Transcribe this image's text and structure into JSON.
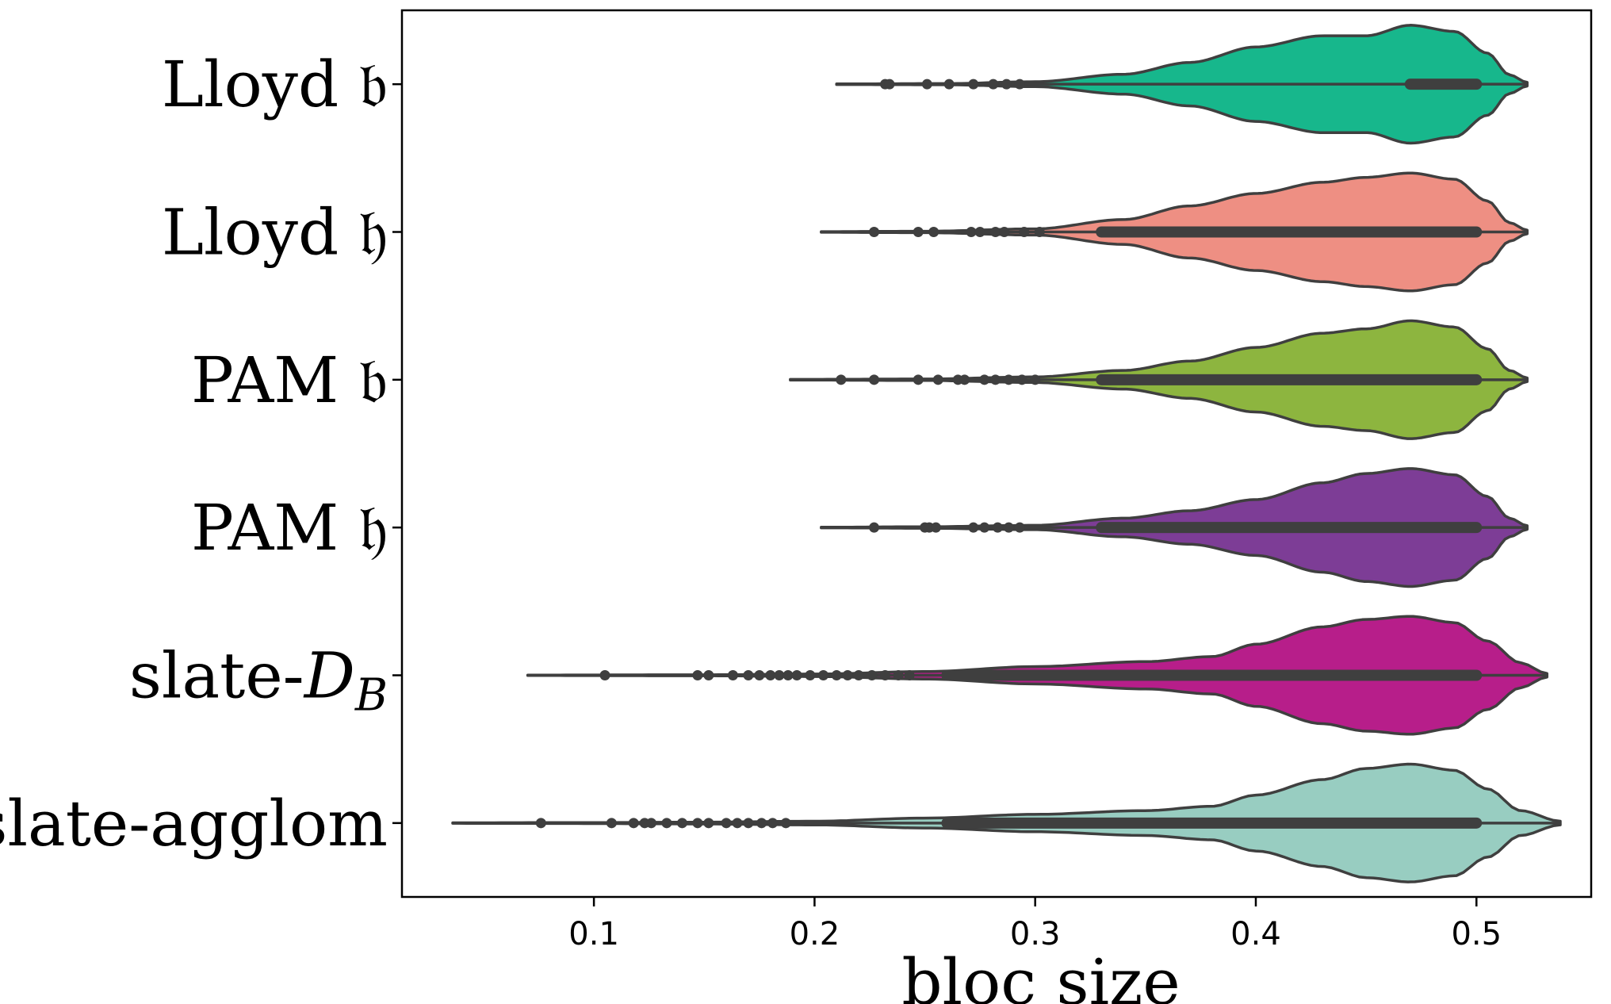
{
  "chart_data": {
    "type": "violin",
    "orientation": "horizontal",
    "xlabel": "bloc size",
    "ylabel": "",
    "xlim": [
      0.013,
      0.552
    ],
    "xticks": [
      0.1,
      0.2,
      0.3,
      0.4,
      0.5
    ],
    "xtick_labels": [
      "0.1",
      "0.2",
      "0.3",
      "0.4",
      "0.5"
    ],
    "grid": false,
    "outline_color": "#3f3f3f",
    "series": [
      {
        "name": "Lloyd 𝔟",
        "color": "#17b78c",
        "min": 0.21,
        "max": 0.523,
        "median": 0.5,
        "q1": 0.47,
        "q3": 0.5,
        "profile": [
          [
            0.21,
            0.005
          ],
          [
            0.26,
            0.01
          ],
          [
            0.3,
            0.04
          ],
          [
            0.34,
            0.16
          ],
          [
            0.37,
            0.35
          ],
          [
            0.4,
            0.6
          ],
          [
            0.43,
            0.78
          ],
          [
            0.45,
            0.78
          ],
          [
            0.47,
            0.95
          ],
          [
            0.49,
            0.85
          ],
          [
            0.505,
            0.5
          ],
          [
            0.515,
            0.15
          ],
          [
            0.523,
            0.03
          ]
        ],
        "outliers": [
          0.232,
          0.234,
          0.251,
          0.261,
          0.272,
          0.281,
          0.287,
          0.293
        ]
      },
      {
        "name": "Lloyd 𝔥",
        "color": "#ee8f83",
        "min": 0.203,
        "max": 0.523,
        "median": 0.5,
        "q1": 0.33,
        "q3": 0.5,
        "profile": [
          [
            0.203,
            0.005
          ],
          [
            0.25,
            0.012
          ],
          [
            0.3,
            0.05
          ],
          [
            0.34,
            0.2
          ],
          [
            0.37,
            0.42
          ],
          [
            0.4,
            0.62
          ],
          [
            0.43,
            0.8
          ],
          [
            0.45,
            0.88
          ],
          [
            0.47,
            0.95
          ],
          [
            0.49,
            0.85
          ],
          [
            0.505,
            0.5
          ],
          [
            0.515,
            0.15
          ],
          [
            0.523,
            0.03
          ]
        ],
        "outliers": [
          0.227,
          0.247,
          0.254,
          0.271,
          0.275,
          0.282,
          0.286,
          0.295,
          0.302
        ]
      },
      {
        "name": "PAM 𝔟",
        "color": "#8db53f",
        "min": 0.189,
        "max": 0.523,
        "median": 0.5,
        "q1": 0.33,
        "q3": 0.5,
        "profile": [
          [
            0.189,
            0.005
          ],
          [
            0.25,
            0.012
          ],
          [
            0.3,
            0.045
          ],
          [
            0.34,
            0.15
          ],
          [
            0.37,
            0.3
          ],
          [
            0.4,
            0.52
          ],
          [
            0.43,
            0.75
          ],
          [
            0.45,
            0.82
          ],
          [
            0.47,
            0.95
          ],
          [
            0.49,
            0.85
          ],
          [
            0.505,
            0.5
          ],
          [
            0.515,
            0.15
          ],
          [
            0.523,
            0.03
          ]
        ],
        "outliers": [
          0.212,
          0.227,
          0.247,
          0.256,
          0.265,
          0.268,
          0.277,
          0.282,
          0.288,
          0.294,
          0.3
        ]
      },
      {
        "name": "PAM 𝔥",
        "color": "#7d3d96",
        "min": 0.203,
        "max": 0.523,
        "median": 0.5,
        "q1": 0.33,
        "q3": 0.5,
        "profile": [
          [
            0.203,
            0.005
          ],
          [
            0.25,
            0.012
          ],
          [
            0.3,
            0.035
          ],
          [
            0.34,
            0.15
          ],
          [
            0.37,
            0.27
          ],
          [
            0.4,
            0.45
          ],
          [
            0.43,
            0.72
          ],
          [
            0.45,
            0.87
          ],
          [
            0.47,
            0.95
          ],
          [
            0.49,
            0.85
          ],
          [
            0.505,
            0.5
          ],
          [
            0.515,
            0.15
          ],
          [
            0.523,
            0.03
          ]
        ],
        "outliers": [
          0.227,
          0.25,
          0.252,
          0.255,
          0.272,
          0.277,
          0.283,
          0.288,
          0.293
        ]
      },
      {
        "name": "slate-",
        "name_math": "D",
        "name_sub": "B",
        "color": "#b71e8a",
        "min": 0.07,
        "max": 0.532,
        "median": 0.5,
        "q1": 0.26,
        "q3": 0.5,
        "profile": [
          [
            0.07,
            0.004
          ],
          [
            0.15,
            0.008
          ],
          [
            0.2,
            0.02
          ],
          [
            0.25,
            0.06
          ],
          [
            0.3,
            0.14
          ],
          [
            0.35,
            0.22
          ],
          [
            0.38,
            0.3
          ],
          [
            0.4,
            0.5
          ],
          [
            0.43,
            0.78
          ],
          [
            0.45,
            0.9
          ],
          [
            0.47,
            0.95
          ],
          [
            0.49,
            0.85
          ],
          [
            0.505,
            0.55
          ],
          [
            0.52,
            0.2
          ],
          [
            0.532,
            0.03
          ]
        ],
        "outliers": [
          0.105,
          0.147,
          0.152,
          0.163,
          0.17,
          0.175,
          0.18,
          0.184,
          0.188,
          0.192,
          0.198,
          0.204,
          0.21,
          0.215,
          0.22,
          0.226,
          0.232,
          0.238,
          0.243
        ]
      },
      {
        "name": "slate-agglom",
        "color": "#98cdc1",
        "min": 0.036,
        "max": 0.538,
        "median": 0.5,
        "q1": 0.26,
        "q3": 0.5,
        "profile": [
          [
            0.036,
            0.004
          ],
          [
            0.1,
            0.008
          ],
          [
            0.15,
            0.015
          ],
          [
            0.2,
            0.03
          ],
          [
            0.25,
            0.08
          ],
          [
            0.3,
            0.14
          ],
          [
            0.35,
            0.2
          ],
          [
            0.38,
            0.27
          ],
          [
            0.4,
            0.45
          ],
          [
            0.43,
            0.7
          ],
          [
            0.45,
            0.88
          ],
          [
            0.47,
            0.95
          ],
          [
            0.49,
            0.85
          ],
          [
            0.505,
            0.55
          ],
          [
            0.52,
            0.2
          ],
          [
            0.538,
            0.03
          ]
        ],
        "outliers": [
          0.076,
          0.108,
          0.118,
          0.123,
          0.126,
          0.133,
          0.14,
          0.147,
          0.152,
          0.16,
          0.165,
          0.17,
          0.176,
          0.181,
          0.187
        ]
      }
    ]
  }
}
